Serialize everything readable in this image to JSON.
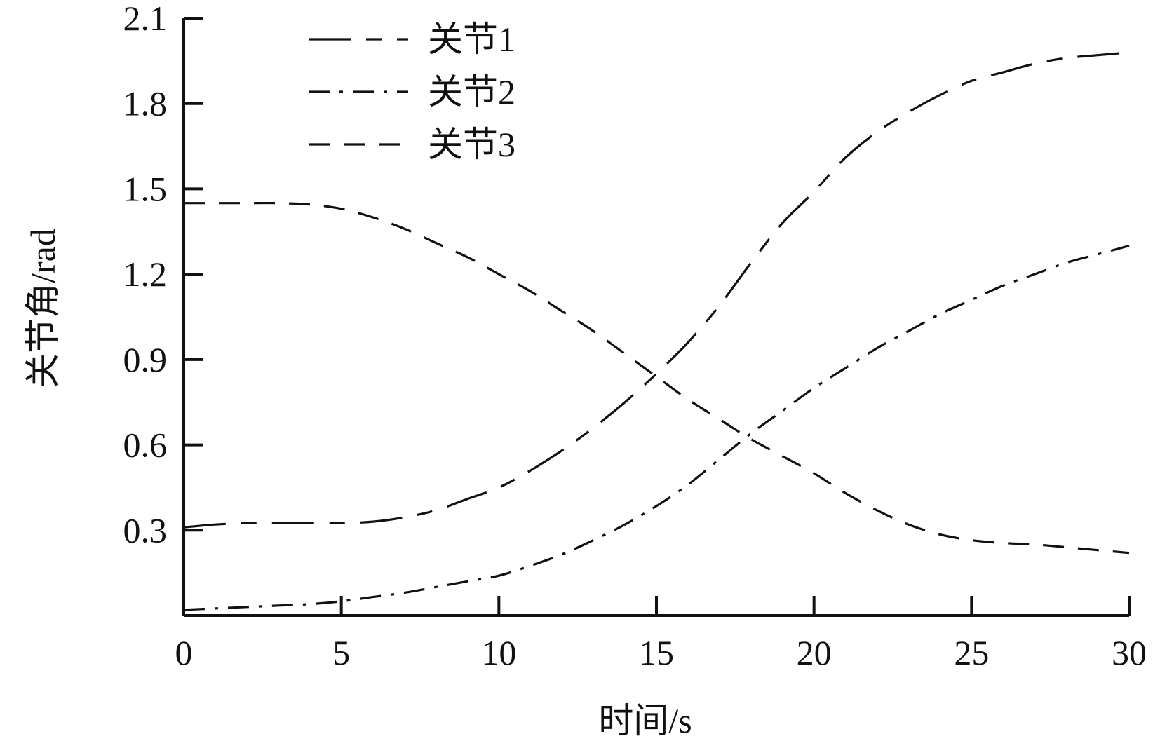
{
  "chart_data": {
    "type": "line",
    "xlabel": "时间/s",
    "ylabel": "关节角/rad",
    "xlim": [
      0,
      30
    ],
    "ylim": [
      0,
      2.1
    ],
    "xticks": [
      0,
      5,
      10,
      15,
      20,
      25,
      30
    ],
    "yticks": [
      0.3,
      0.6,
      0.9,
      1.2,
      1.5,
      1.8,
      2.1
    ],
    "xtick_labels": [
      "0",
      "5",
      "10",
      "15",
      "20",
      "25",
      "30"
    ],
    "ytick_labels": [
      "0.3",
      "0.6",
      "0.9",
      "1.2",
      "1.5",
      "1.8",
      "2.1"
    ],
    "grid": false,
    "legend_position": "top-left",
    "line_color": "#111111",
    "series": [
      {
        "name": "关节1",
        "style": "long-dash-short-dash",
        "x": [
          0,
          1,
          2,
          3,
          4,
          5,
          6,
          7,
          8,
          9,
          10,
          11,
          12,
          13,
          14,
          15,
          16,
          17,
          18,
          19,
          20,
          21,
          22,
          23,
          24,
          25,
          26,
          27,
          28,
          29,
          30
        ],
        "y": [
          0.31,
          0.32,
          0.325,
          0.325,
          0.325,
          0.325,
          0.33,
          0.345,
          0.37,
          0.41,
          0.45,
          0.51,
          0.58,
          0.66,
          0.75,
          0.85,
          0.96,
          1.09,
          1.24,
          1.38,
          1.49,
          1.61,
          1.7,
          1.77,
          1.83,
          1.88,
          1.91,
          1.94,
          1.96,
          1.97,
          1.98
        ]
      },
      {
        "name": "关节2",
        "style": "dash-dot-dot",
        "x": [
          0,
          1,
          2,
          3,
          4,
          5,
          6,
          7,
          8,
          9,
          10,
          11,
          12,
          13,
          14,
          15,
          16,
          17,
          18,
          19,
          20,
          21,
          22,
          23,
          24,
          25,
          26,
          27,
          28,
          29,
          30
        ],
        "y": [
          0.02,
          0.025,
          0.03,
          0.035,
          0.04,
          0.05,
          0.065,
          0.08,
          0.1,
          0.12,
          0.14,
          0.175,
          0.215,
          0.265,
          0.32,
          0.385,
          0.46,
          0.55,
          0.64,
          0.72,
          0.8,
          0.87,
          0.94,
          1.0,
          1.06,
          1.11,
          1.16,
          1.2,
          1.24,
          1.27,
          1.3
        ]
      },
      {
        "name": "关节3",
        "style": "dashed",
        "x": [
          0,
          1,
          2,
          3,
          4,
          5,
          6,
          7,
          8,
          9,
          10,
          11,
          12,
          13,
          14,
          15,
          16,
          17,
          18,
          19,
          20,
          21,
          22,
          23,
          24,
          25,
          26,
          27,
          28,
          29,
          30
        ],
        "y": [
          1.45,
          1.45,
          1.45,
          1.45,
          1.445,
          1.43,
          1.4,
          1.36,
          1.31,
          1.26,
          1.2,
          1.14,
          1.07,
          1.0,
          0.92,
          0.84,
          0.76,
          0.69,
          0.62,
          0.56,
          0.5,
          0.43,
          0.37,
          0.32,
          0.285,
          0.265,
          0.255,
          0.25,
          0.24,
          0.23,
          0.22
        ]
      }
    ]
  }
}
